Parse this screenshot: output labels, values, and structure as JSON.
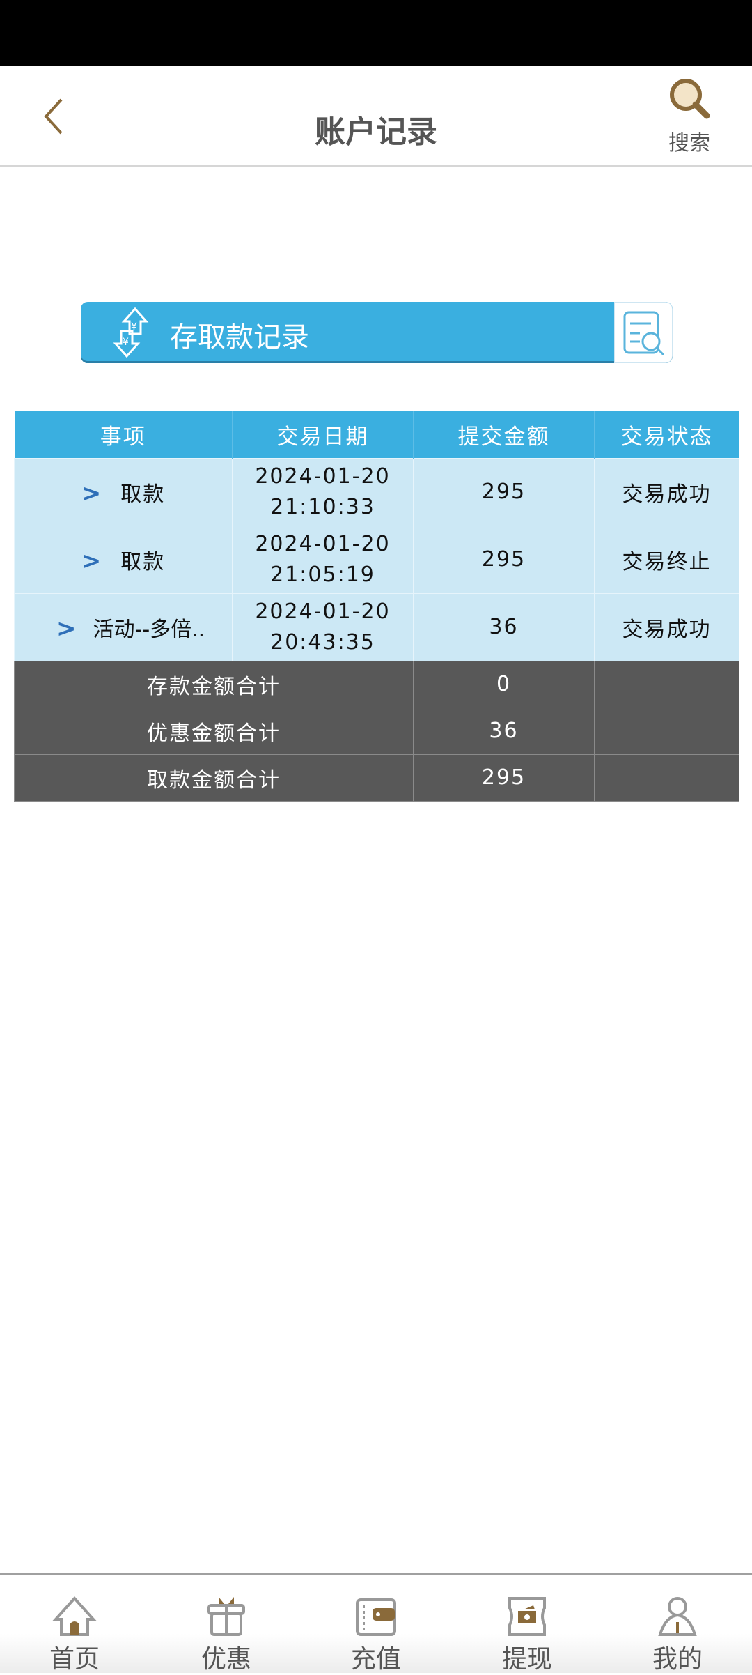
{
  "header": {
    "title": "账户记录",
    "search_label": "搜索"
  },
  "banner": {
    "title": "存取款记录"
  },
  "table": {
    "columns": [
      "事项",
      "交易日期",
      "提交金额",
      "交易状态"
    ],
    "rows": [
      {
        "item": "取款",
        "date": "2024-01-20",
        "time": "21:10:33",
        "amount": "295",
        "status": "交易成功",
        "status_color": "#1a9070"
      },
      {
        "item": "取款",
        "date": "2024-01-20",
        "time": "21:05:19",
        "amount": "295",
        "status": "交易终止",
        "status_color": "#e03040"
      },
      {
        "item": "活动--多倍..",
        "date": "2024-01-20",
        "time": "20:43:35",
        "amount": "36",
        "status": "交易成功",
        "status_color": "#1a9070"
      }
    ],
    "summary": [
      {
        "label": "存款金额合计",
        "value": "0"
      },
      {
        "label": "优惠金额合计",
        "value": "36"
      },
      {
        "label": "取款金额合计",
        "value": "295"
      }
    ]
  },
  "nav": {
    "items": [
      {
        "label": "首页",
        "icon": "home-icon"
      },
      {
        "label": "优惠",
        "icon": "gift-icon"
      },
      {
        "label": "充值",
        "icon": "wallet-icon"
      },
      {
        "label": "提现",
        "icon": "cash-icon"
      },
      {
        "label": "我的",
        "icon": "user-icon"
      }
    ]
  },
  "colors": {
    "accent": "#3aafe0",
    "brand_brown": "#8a6a3a",
    "summary_bg": "#585858"
  }
}
